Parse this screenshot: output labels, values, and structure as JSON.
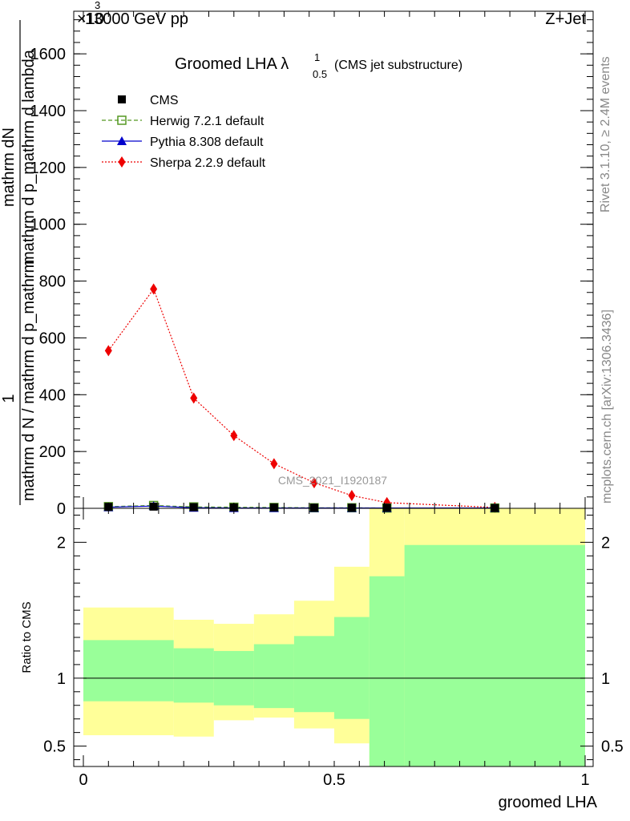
{
  "header": {
    "left": "13000 GeV pp",
    "right": "Z+Jet",
    "multiplier": "×10"
  },
  "side_text": {
    "rivet": "Rivet 3.1.10, ≥ 2.4M events",
    "mcplots": "mcplots.cern.ch [arXiv:1306.3436]"
  },
  "watermark": "CMS_2021_I1920187",
  "chart_data": [
    {
      "type": "line",
      "title": "Groomed LHA",
      "title_symbol": "λ",
      "title_sup": "1",
      "title_sub": "0.5",
      "title_note": "(CMS jet substructure)",
      "ylabel_num": "mathrm dN",
      "ylabel_den": "mathrm d p_mathrm d lambda",
      "ylabel_prefix": "1",
      "ylabel_prefix_den": "mathrm d N / mathrm d p_mathrm",
      "xlim": [
        0,
        1
      ],
      "ylim": [
        0,
        1750
      ],
      "yticks": [
        0,
        200,
        400,
        600,
        800,
        1000,
        1200,
        1400,
        1600
      ],
      "legend_position": "top-left",
      "x": [
        0.05,
        0.14,
        0.22,
        0.3,
        0.38,
        0.46,
        0.535,
        0.605,
        0.82
      ],
      "series": [
        {
          "name": "CMS",
          "color": "#000000",
          "marker": "square",
          "style": "none",
          "values": [
            5,
            6,
            4,
            3,
            3,
            2,
            2,
            2,
            1
          ]
        },
        {
          "name": "Herwig 7.2.1 default",
          "color": "#559922",
          "marker": "open-square",
          "style": "dashed",
          "values": [
            6,
            10,
            5,
            4,
            3,
            2,
            2,
            1,
            1
          ]
        },
        {
          "name": "Pythia 8.308 default",
          "color": "#0000cc",
          "marker": "triangle",
          "style": "solid",
          "values": [
            4,
            8,
            2,
            1,
            1,
            1,
            1,
            1,
            1
          ]
        },
        {
          "name": "Sherpa 2.2.9 default",
          "color": "#ee0000",
          "marker": "diamond",
          "style": "dotted",
          "values": [
            555,
            772,
            388,
            256,
            157,
            90,
            45,
            20,
            3
          ]
        }
      ]
    },
    {
      "type": "area",
      "ylabel": "Ratio to CMS",
      "xlabel": "groomed LHA",
      "xlim": [
        0,
        1
      ],
      "ylim": [
        0.35,
        2.25
      ],
      "yticks": [
        0.5,
        1,
        2
      ],
      "ytick_labels": [
        "0.5",
        "1",
        "2"
      ],
      "xticks": [
        0,
        0.5,
        1
      ],
      "xtick_labels": [
        "0",
        "0.5",
        "1"
      ],
      "reference": 1,
      "bins": [
        0,
        0.18,
        0.26,
        0.34,
        0.42,
        0.5,
        0.57,
        0.64,
        1.0
      ],
      "band_start": 0.0,
      "inner_band": {
        "color": "#99ff99",
        "upper": [
          1.28,
          1.22,
          1.2,
          1.25,
          1.31,
          1.45,
          1.75,
          1.98,
          1.98
        ],
        "lower": [
          0.83,
          0.82,
          0.8,
          0.78,
          0.75,
          0.7,
          0.35,
          0.35,
          0.35
        ]
      },
      "outer_band": {
        "color": "#ffff99",
        "upper": [
          1.52,
          1.43,
          1.4,
          1.47,
          1.57,
          1.82,
          2.25,
          2.25,
          2.25
        ],
        "lower": [
          0.58,
          0.57,
          0.69,
          0.71,
          0.63,
          0.52,
          0.35,
          0.35,
          0.35
        ]
      }
    }
  ]
}
